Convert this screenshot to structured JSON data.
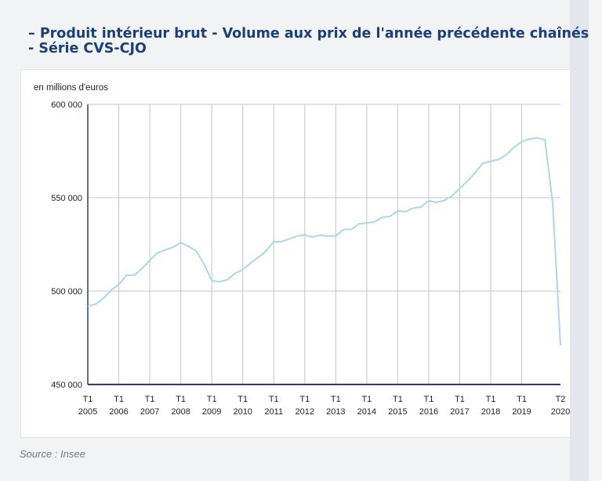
{
  "title_lines": [
    "– Produit intérieur brut - Volume aux prix de l'année précédente chaînés",
    "- Série CVS-CJO"
  ],
  "source": "Source : Insee",
  "colors": {
    "title": "#1c3f78",
    "line": "#a9d8ea",
    "axis": "#2b3a7c",
    "grid": "#c4c4c4"
  },
  "chart_data": {
    "type": "line",
    "ylabel": "en millions d'euros",
    "ylim": [
      450000,
      600000
    ],
    "yticks": [
      {
        "value": 600000,
        "label": "600 000"
      },
      {
        "value": 550000,
        "label": "550 000"
      },
      {
        "value": 500000,
        "label": "500 000"
      },
      {
        "value": 450000,
        "label": "450 000"
      }
    ],
    "xticks": [
      {
        "q": 0,
        "top": "T1",
        "bottom": "2005"
      },
      {
        "q": 4,
        "top": "T1",
        "bottom": "2006"
      },
      {
        "q": 8,
        "top": "T1",
        "bottom": "2007"
      },
      {
        "q": 12,
        "top": "T1",
        "bottom": "2008"
      },
      {
        "q": 16,
        "top": "T1",
        "bottom": "2009"
      },
      {
        "q": 20,
        "top": "T1",
        "bottom": "2010"
      },
      {
        "q": 24,
        "top": "T1",
        "bottom": "2011"
      },
      {
        "q": 28,
        "top": "T1",
        "bottom": "2012"
      },
      {
        "q": 32,
        "top": "T1",
        "bottom": "2013"
      },
      {
        "q": 36,
        "top": "T1",
        "bottom": "2014"
      },
      {
        "q": 40,
        "top": "T1",
        "bottom": "2015"
      },
      {
        "q": 44,
        "top": "T1",
        "bottom": "2016"
      },
      {
        "q": 48,
        "top": "T1",
        "bottom": "2017"
      },
      {
        "q": 52,
        "top": "T1",
        "bottom": "2018"
      },
      {
        "q": 56,
        "top": "T1",
        "bottom": "2019"
      },
      {
        "q": 61,
        "top": "T2",
        "bottom": "2020"
      }
    ],
    "grid": true,
    "series": [
      {
        "x": [
          "2005-T1",
          "2005-T2",
          "2005-T3",
          "2005-T4",
          "2006-T1",
          "2006-T2",
          "2006-T3",
          "2006-T4",
          "2007-T1",
          "2007-T2",
          "2007-T3",
          "2007-T4",
          "2008-T1",
          "2008-T2",
          "2008-T3",
          "2008-T4",
          "2009-T1",
          "2009-T2",
          "2009-T3",
          "2009-T4",
          "2010-T1",
          "2010-T2",
          "2010-T3",
          "2010-T4",
          "2011-T1",
          "2011-T2",
          "2011-T3",
          "2011-T4",
          "2012-T1",
          "2012-T2",
          "2012-T3",
          "2012-T4",
          "2013-T1",
          "2013-T2",
          "2013-T3",
          "2013-T4",
          "2014-T1",
          "2014-T2",
          "2014-T3",
          "2014-T4",
          "2015-T1",
          "2015-T2",
          "2015-T3",
          "2015-T4",
          "2016-T1",
          "2016-T2",
          "2016-T3",
          "2016-T4",
          "2017-T1",
          "2017-T2",
          "2017-T3",
          "2017-T4",
          "2018-T1",
          "2018-T2",
          "2018-T3",
          "2018-T4",
          "2019-T1",
          "2019-T2",
          "2019-T3",
          "2019-T4",
          "2020-T1",
          "2020-T2"
        ],
        "values": [
          492000,
          493000,
          496000,
          500500,
          503500,
          508500,
          508500,
          512000,
          516500,
          520500,
          522000,
          523500,
          526000,
          524000,
          521500,
          514500,
          505500,
          505000,
          506000,
          509500,
          511500,
          515000,
          518000,
          521500,
          526500,
          526500,
          528000,
          529500,
          530000,
          529000,
          530000,
          529500,
          529500,
          533000,
          533000,
          536000,
          536500,
          537000,
          539500,
          540000,
          543000,
          542500,
          544500,
          545000,
          548500,
          547500,
          548500,
          551000,
          555000,
          559000,
          563500,
          568500,
          569500,
          570500,
          573000,
          577000,
          580000,
          581500,
          582000,
          581000,
          547000,
          471000
        ]
      }
    ]
  }
}
